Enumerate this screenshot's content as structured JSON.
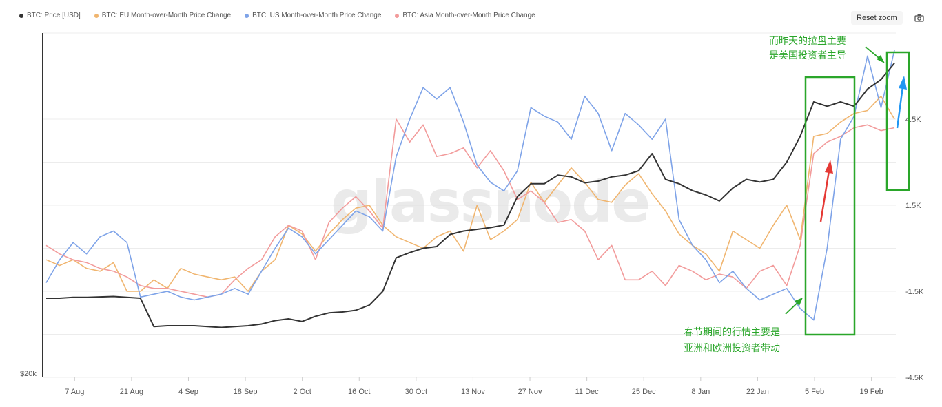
{
  "watermark": "glassnode",
  "toolbar": {
    "reset_zoom_label": "Reset zoom",
    "camera_icon": "camera-icon"
  },
  "colors": {
    "price": "#333333",
    "eu": "#f0b56f",
    "us": "#7ea3e8",
    "asia": "#f29b9b",
    "annotation_green": "#2aa62a",
    "arrow_red": "#e53935",
    "arrow_blue": "#2196f3"
  },
  "annotations": {
    "top_note_line1": "而昨天的拉盘主要",
    "top_note_line2": "是美国投资者主导",
    "bottom_note_line1": "春节期间的行情主要是",
    "bottom_note_line2": "亚洲和欧洲投资者带动"
  },
  "chart_data": {
    "type": "line",
    "title": "",
    "x_ticks": [
      "7 Aug",
      "21 Aug",
      "4 Sep",
      "18 Sep",
      "2 Oct",
      "16 Oct",
      "30 Oct",
      "13 Nov",
      "27 Nov",
      "11 Dec",
      "25 Dec",
      "8 Jan",
      "22 Jan",
      "5 Feb",
      "19 Feb"
    ],
    "x_range": [
      "2023-07-31",
      "2024-02-25"
    ],
    "left_axis": {
      "ticks": [
        "$20k"
      ],
      "min": 20000
    },
    "right_axis": {
      "ticks": [
        "4.5K",
        "1.5K",
        "-1.5K",
        "-4.5K"
      ],
      "range": [
        -4500,
        7500
      ]
    },
    "legend_position": "top-left",
    "series": [
      {
        "name": "BTC: Price [USD]",
        "color": "#333333",
        "axis": "left",
        "values": [
          29200,
          29200,
          29300,
          29300,
          29350,
          29400,
          29300,
          29200,
          25900,
          26000,
          26000,
          26000,
          25900,
          25800,
          25900,
          26000,
          26200,
          26600,
          26800,
          26500,
          27100,
          27500,
          27600,
          27800,
          28400,
          30000,
          33900,
          34500,
          35000,
          35200,
          36600,
          37000,
          37200,
          37400,
          37700,
          41000,
          42500,
          42500,
          43500,
          43300,
          42600,
          42800,
          43300,
          43500,
          44000,
          46000,
          43000,
          42500,
          41700,
          41200,
          40500,
          42000,
          43000,
          42700,
          43000,
          45000,
          48000,
          52000,
          51500,
          52000,
          51500,
          53500,
          54600,
          56500
        ],
        "y_values_note": "USD"
      },
      {
        "name": "BTC: EU Month-over-Month Price Change",
        "color": "#f0b56f",
        "axis": "right",
        "values": [
          -400,
          -600,
          -400,
          -700,
          -800,
          -500,
          -1500,
          -1500,
          -1100,
          -1400,
          -700,
          -900,
          -1000,
          -1100,
          -1000,
          -1500,
          -800,
          -400,
          800,
          500,
          -100,
          500,
          1000,
          1400,
          1500,
          800,
          400,
          200,
          0,
          400,
          600,
          -100,
          1500,
          300,
          600,
          1000,
          2300,
          1600,
          2200,
          2800,
          2300,
          1700,
          1600,
          2200,
          2600,
          1900,
          1300,
          500,
          100,
          -200,
          -800,
          600,
          300,
          0,
          800,
          1500,
          300,
          3900,
          4000,
          4400,
          4700,
          4800,
          5300,
          4500
        ]
      },
      {
        "name": "BTC: US Month-over-Month Price Change",
        "color": "#7ea3e8",
        "axis": "right",
        "values": [
          -1200,
          -400,
          200,
          -200,
          400,
          600,
          200,
          -1700,
          -1600,
          -1500,
          -1700,
          -1800,
          -1700,
          -1600,
          -1400,
          -1600,
          -800,
          0,
          700,
          400,
          -200,
          300,
          800,
          1300,
          1100,
          600,
          3200,
          4500,
          5600,
          5200,
          5600,
          4400,
          2900,
          2300,
          2000,
          2700,
          4900,
          4600,
          4400,
          3800,
          5300,
          4700,
          3400,
          4700,
          4300,
          3800,
          4500,
          1000,
          100,
          -400,
          -1200,
          -800,
          -1400,
          -1800,
          -1600,
          -1400,
          -2100,
          -2500,
          0,
          3800,
          4600,
          6700,
          4900,
          6900
        ]
      },
      {
        "name": "BTC: Asia Month-over-Month Price Change",
        "color": "#f29b9b",
        "axis": "right",
        "values": [
          100,
          -200,
          -400,
          -500,
          -700,
          -800,
          -1000,
          -1300,
          -1400,
          -1400,
          -1500,
          -1600,
          -1700,
          -1600,
          -1100,
          -700,
          -400,
          400,
          800,
          600,
          -400,
          900,
          1400,
          1800,
          1300,
          700,
          4500,
          3700,
          4300,
          3200,
          3300,
          3500,
          2800,
          3400,
          2700,
          1700,
          2000,
          1600,
          900,
          1000,
          600,
          -400,
          100,
          -1100,
          -1100,
          -800,
          -1300,
          -600,
          -800,
          -1100,
          -900,
          -1000,
          -1400,
          -800,
          -600,
          -1300,
          100,
          3300,
          3700,
          3900,
          4200,
          4300,
          4100,
          4200
        ]
      }
    ]
  }
}
